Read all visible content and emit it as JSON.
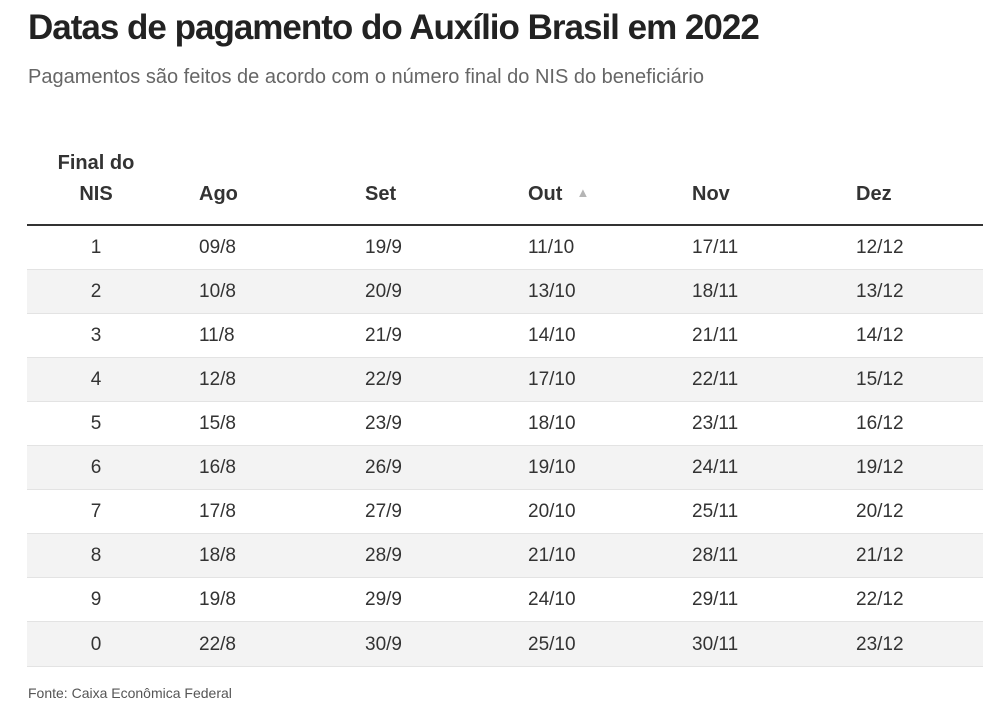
{
  "title": "Datas de pagamento do Auxílio Brasil em 2022",
  "subtitle": "Pagamentos são feitos de acordo com o número final do NIS do beneficiário",
  "table": {
    "header_first_line1": "Final do",
    "header_first_line2": "NIS",
    "months": [
      "Ago",
      "Set",
      "Out",
      "Nov",
      "Dez"
    ],
    "sorted_column": "Out",
    "sort_icon": "sort-ascending-triangle",
    "rows": [
      [
        "1",
        "09/8",
        "19/9",
        "11/10",
        "17/11",
        "12/12"
      ],
      [
        "2",
        "10/8",
        "20/9",
        "13/10",
        "18/11",
        "13/12"
      ],
      [
        "3",
        "11/8",
        "21/9",
        "14/10",
        "21/11",
        "14/12"
      ],
      [
        "4",
        "12/8",
        "22/9",
        "17/10",
        "22/11",
        "15/12"
      ],
      [
        "5",
        "15/8",
        "23/9",
        "18/10",
        "23/11",
        "16/12"
      ],
      [
        "6",
        "16/8",
        "26/9",
        "19/10",
        "24/11",
        "19/12"
      ],
      [
        "7",
        "17/8",
        "27/9",
        "20/10",
        "25/11",
        "20/12"
      ],
      [
        "8",
        "18/8",
        "28/9",
        "21/10",
        "28/11",
        "21/12"
      ],
      [
        "9",
        "19/8",
        "29/9",
        "24/10",
        "29/11",
        "22/12"
      ],
      [
        "0",
        "22/8",
        "30/9",
        "25/10",
        "30/11",
        "23/12"
      ]
    ]
  },
  "source": "Fonte: Caixa Econômica Federal",
  "colors": {
    "title": "#222222",
    "subtitle": "#666666",
    "text": "#333333",
    "stripe": "#f3f3f3",
    "header_rule": "#333333",
    "row_rule": "#e3e3e3",
    "sort_icon": "#b5b5b5"
  }
}
